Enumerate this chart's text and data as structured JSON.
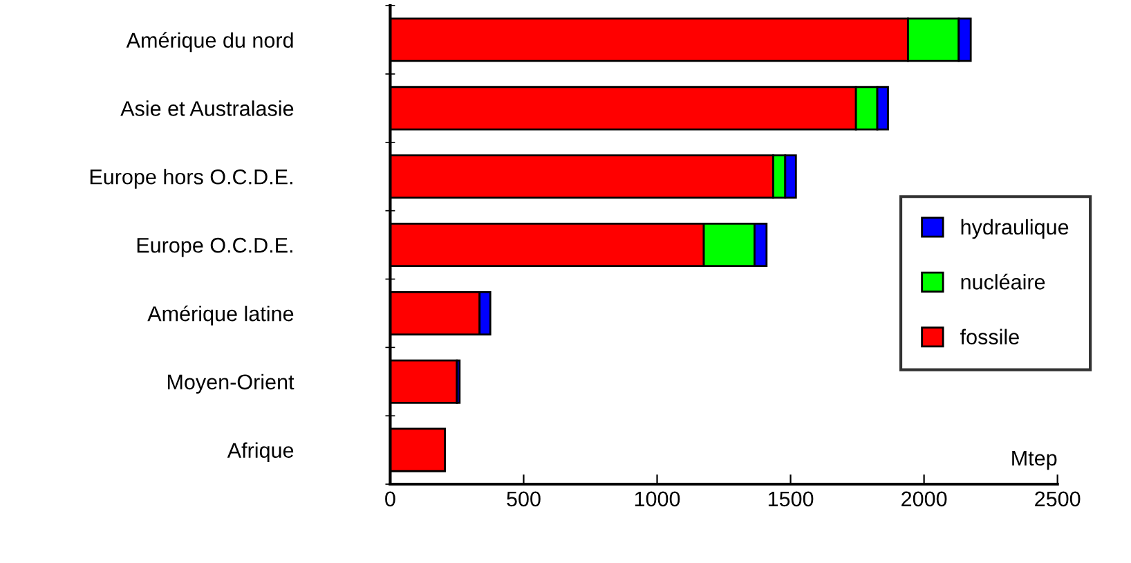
{
  "chart_data": {
    "type": "bar",
    "orientation": "horizontal",
    "stacked": true,
    "categories": [
      "Amérique du nord",
      "Asie et Australasie",
      "Europe hors O.C.D.E.",
      "Europe O.C.D.E.",
      "Amérique latine",
      "Moyen-Orient",
      "Afrique"
    ],
    "series": [
      {
        "name": "fossile",
        "color": "#ff0000",
        "values": [
          1940,
          1745,
          1435,
          1175,
          335,
          250,
          205
        ]
      },
      {
        "name": "nucléaire",
        "color": "#00ff00",
        "values": [
          190,
          80,
          45,
          190,
          null,
          null,
          null
        ]
      },
      {
        "name": "hydraulique",
        "color": "#0000ff",
        "values": [
          45,
          40,
          40,
          45,
          40,
          10,
          null
        ]
      }
    ],
    "xlim": [
      0,
      2500
    ],
    "xticks": [
      0,
      500,
      1000,
      1500,
      2000,
      2500
    ],
    "xlabel": "Mtep",
    "legend": "right",
    "grid": false
  }
}
